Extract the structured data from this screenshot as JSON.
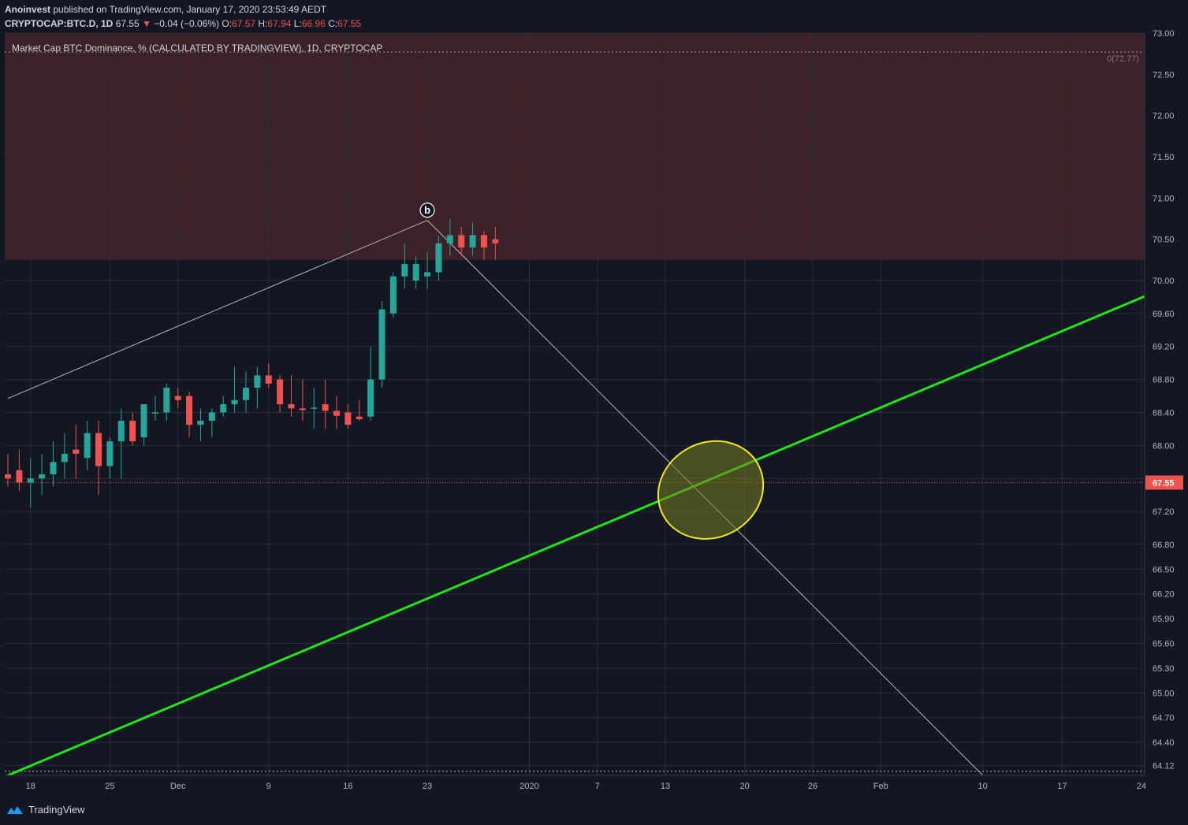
{
  "header": {
    "author": "Anoinvest",
    "published_text": "published on TradingView.com, January 17, 2020 23:53:49 AEDT",
    "symbol": "CRYPTOCAP:BTC.D, 1D",
    "last": "67.55",
    "arrow": "▼",
    "change": "−0.04 (−0.06%)",
    "o_label": "O:",
    "o": "67.57",
    "h_label": "H:",
    "h": "67.94",
    "l_label": "L:",
    "l": "66.96",
    "c_label": "C:",
    "c": "67.55"
  },
  "footer": {
    "brand": "TradingView",
    "logo_icon": "tradingview-logo-icon"
  },
  "colors": {
    "background": "#131722",
    "up": "#26a69a",
    "down": "#ef5350",
    "zone": "#3d2128",
    "trendline": "#22e41b",
    "ellipse_stroke": "#f2e82a",
    "ellipse_fill": "#777d1f",
    "drawing_line": "#b2b5be",
    "grid": "#2a2e39"
  },
  "chart_data": {
    "type": "candlestick",
    "title": "Market Cap BTC Dominance, % (CALCULATED BY TRADINGVIEW), 1D, CRYPTOCAP",
    "symbol": "CRYPTOCAP:BTC.D",
    "interval": "1D",
    "ylim": [
      64.0,
      73.0
    ],
    "x_range": [
      "2019-11-16",
      "2020-02-25"
    ],
    "y_ticks": [
      73.0,
      72.5,
      72.0,
      71.5,
      71.0,
      70.5,
      70.0,
      69.6,
      69.2,
      68.8,
      68.4,
      68.0,
      67.6,
      67.2,
      66.8,
      66.5,
      66.2,
      65.9,
      65.6,
      65.3,
      65.0,
      64.7,
      64.4,
      64.12
    ],
    "y_tick_labels": [
      "73.00",
      "72.50",
      "72.00",
      "71.50",
      "71.00",
      "70.50",
      "70.00",
      "69.60",
      "69.20",
      "68.80",
      "68.40",
      "68.00",
      "67.60",
      "67.20",
      "66.80",
      "66.50",
      "66.20",
      "65.90",
      "65.60",
      "65.30",
      "65.00",
      "64.70",
      "64.40",
      "64.12"
    ],
    "x_ticks": [
      {
        "label": "18",
        "date": "2019-11-18"
      },
      {
        "label": "25",
        "date": "2019-11-25"
      },
      {
        "label": "Dec",
        "date": "2019-12-01"
      },
      {
        "label": "9",
        "date": "2019-12-09"
      },
      {
        "label": "16",
        "date": "2019-12-16"
      },
      {
        "label": "23",
        "date": "2019-12-23"
      },
      {
        "label": "2020",
        "date": "2020-01-01"
      },
      {
        "label": "7",
        "date": "2020-01-07"
      },
      {
        "label": "13",
        "date": "2020-01-13"
      },
      {
        "label": "20",
        "date": "2020-01-20"
      },
      {
        "label": "26",
        "date": "2020-01-26"
      },
      {
        "label": "Feb",
        "date": "2020-02-01"
      },
      {
        "label": "10",
        "date": "2020-02-10"
      },
      {
        "label": "17",
        "date": "2020-02-17"
      },
      {
        "label": "24",
        "date": "2020-02-24"
      }
    ],
    "price_label": "67.55",
    "fib_top_label": "0(72.77)",
    "fib_levels": [
      72.77,
      64.05
    ],
    "resistance_zone": [
      70.25,
      73.0
    ],
    "pattern_point": {
      "label": "b",
      "date": "2019-12-23",
      "price": 70.7
    },
    "drawing_lines": [
      {
        "name": "b-leg-up",
        "from": {
          "date": "2019-11-16",
          "price": 68.57
        },
        "to": {
          "date": "2019-12-23",
          "price": 70.73
        }
      },
      {
        "name": "b-leg-down",
        "from": {
          "date": "2019-12-23",
          "price": 70.73
        },
        "to": {
          "date": "2020-02-10",
          "price": 64.0
        }
      }
    ],
    "trendline": {
      "from": {
        "date": "2019-11-16",
        "price": 64.0
      },
      "to": {
        "date": "2020-02-25",
        "price": 69.85
      }
    },
    "highlight_ellipse": {
      "center": {
        "date": "2020-01-17",
        "price": 67.46
      },
      "span_days": 9.5,
      "span_price": 1.15
    },
    "candles": [
      {
        "date": "2019-11-16",
        "o": 67.65,
        "h": 67.9,
        "l": 67.5,
        "c": 67.6
      },
      {
        "date": "2019-11-17",
        "o": 67.7,
        "h": 67.95,
        "l": 67.45,
        "c": 67.55
      },
      {
        "date": "2019-11-18",
        "o": 67.55,
        "h": 67.85,
        "l": 67.25,
        "c": 67.6
      },
      {
        "date": "2019-11-19",
        "o": 67.6,
        "h": 67.9,
        "l": 67.4,
        "c": 67.65
      },
      {
        "date": "2019-11-20",
        "o": 67.65,
        "h": 68.05,
        "l": 67.5,
        "c": 67.8
      },
      {
        "date": "2019-11-21",
        "o": 67.8,
        "h": 68.15,
        "l": 67.6,
        "c": 67.9
      },
      {
        "date": "2019-11-22",
        "o": 67.95,
        "h": 68.25,
        "l": 67.6,
        "c": 67.9
      },
      {
        "date": "2019-11-23",
        "o": 67.85,
        "h": 68.3,
        "l": 67.7,
        "c": 68.15
      },
      {
        "date": "2019-11-24",
        "o": 68.15,
        "h": 68.3,
        "l": 67.4,
        "c": 67.75
      },
      {
        "date": "2019-11-25",
        "o": 67.75,
        "h": 68.1,
        "l": 67.6,
        "c": 68.05
      },
      {
        "date": "2019-11-26",
        "o": 68.05,
        "h": 68.45,
        "l": 67.6,
        "c": 68.3
      },
      {
        "date": "2019-11-27",
        "o": 68.3,
        "h": 68.4,
        "l": 68.0,
        "c": 68.05
      },
      {
        "date": "2019-11-28",
        "o": 68.1,
        "h": 68.5,
        "l": 68.0,
        "c": 68.5
      },
      {
        "date": "2019-11-29",
        "o": 68.4,
        "h": 68.6,
        "l": 68.3,
        "c": 68.4
      },
      {
        "date": "2019-11-30",
        "o": 68.4,
        "h": 68.75,
        "l": 68.3,
        "c": 68.7
      },
      {
        "date": "2019-12-01",
        "o": 68.6,
        "h": 68.7,
        "l": 68.45,
        "c": 68.55
      },
      {
        "date": "2019-12-02",
        "o": 68.6,
        "h": 68.65,
        "l": 68.1,
        "c": 68.25
      },
      {
        "date": "2019-12-03",
        "o": 68.25,
        "h": 68.45,
        "l": 68.05,
        "c": 68.3
      },
      {
        "date": "2019-12-04",
        "o": 68.3,
        "h": 68.45,
        "l": 68.1,
        "c": 68.4
      },
      {
        "date": "2019-12-05",
        "o": 68.4,
        "h": 68.6,
        "l": 68.35,
        "c": 68.5
      },
      {
        "date": "2019-12-06",
        "o": 68.5,
        "h": 68.95,
        "l": 68.4,
        "c": 68.55
      },
      {
        "date": "2019-12-07",
        "o": 68.55,
        "h": 68.9,
        "l": 68.4,
        "c": 68.7
      },
      {
        "date": "2019-12-08",
        "o": 68.7,
        "h": 68.95,
        "l": 68.45,
        "c": 68.85
      },
      {
        "date": "2019-12-09",
        "o": 68.85,
        "h": 69.0,
        "l": 68.7,
        "c": 68.75
      },
      {
        "date": "2019-12-10",
        "o": 68.8,
        "h": 68.85,
        "l": 68.4,
        "c": 68.5
      },
      {
        "date": "2019-12-11",
        "o": 68.5,
        "h": 68.85,
        "l": 68.35,
        "c": 68.45
      },
      {
        "date": "2019-12-12",
        "o": 68.45,
        "h": 68.8,
        "l": 68.3,
        "c": 68.43
      },
      {
        "date": "2019-12-13",
        "o": 68.45,
        "h": 68.7,
        "l": 68.2,
        "c": 68.46
      },
      {
        "date": "2019-12-14",
        "o": 68.5,
        "h": 68.8,
        "l": 68.2,
        "c": 68.42
      },
      {
        "date": "2019-12-15",
        "o": 68.42,
        "h": 68.6,
        "l": 68.2,
        "c": 68.36
      },
      {
        "date": "2019-12-16",
        "o": 68.4,
        "h": 68.5,
        "l": 68.2,
        "c": 68.25
      },
      {
        "date": "2019-12-17",
        "o": 68.35,
        "h": 68.55,
        "l": 68.3,
        "c": 68.32
      },
      {
        "date": "2019-12-18",
        "o": 68.35,
        "h": 69.2,
        "l": 68.3,
        "c": 68.8
      },
      {
        "date": "2019-12-19",
        "o": 68.8,
        "h": 69.75,
        "l": 68.7,
        "c": 69.65
      },
      {
        "date": "2019-12-20",
        "o": 69.6,
        "h": 70.1,
        "l": 69.55,
        "c": 70.05
      },
      {
        "date": "2019-12-21",
        "o": 70.05,
        "h": 70.45,
        "l": 69.9,
        "c": 70.2
      },
      {
        "date": "2019-12-22",
        "o": 70.0,
        "h": 70.3,
        "l": 69.9,
        "c": 70.2
      },
      {
        "date": "2019-12-23",
        "o": 70.05,
        "h": 70.35,
        "l": 69.9,
        "c": 70.1
      },
      {
        "date": "2019-12-24",
        "o": 70.1,
        "h": 70.55,
        "l": 70.0,
        "c": 70.45
      },
      {
        "date": "2019-12-25",
        "o": 70.45,
        "h": 70.75,
        "l": 70.3,
        "c": 70.55
      },
      {
        "date": "2019-12-26",
        "o": 70.55,
        "h": 70.65,
        "l": 70.3,
        "c": 70.4
      },
      {
        "date": "2019-12-27",
        "o": 70.4,
        "h": 70.7,
        "l": 70.3,
        "c": 70.55
      },
      {
        "date": "2019-12-28",
        "o": 70.55,
        "h": 70.6,
        "l": 70.25,
        "c": 70.4
      },
      {
        "date": "2019-12-29",
        "o": 70.5,
        "h": 70.65,
        "l": 70.25,
        "c": 70.45
      }
    ]
  }
}
